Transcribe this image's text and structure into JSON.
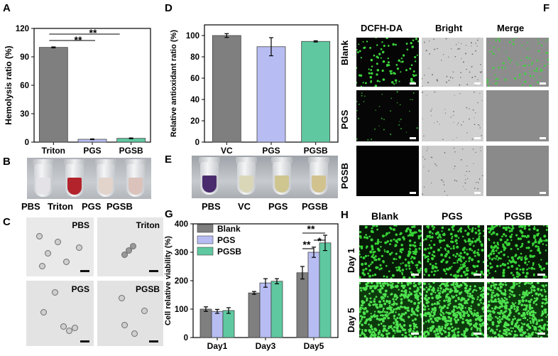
{
  "panel_labels": {
    "A": "A",
    "B": "B",
    "C": "C",
    "D": "D",
    "E": "E",
    "F": "F",
    "G": "G",
    "H": "H"
  },
  "panel_A": {
    "sig": [
      "**",
      "**"
    ]
  },
  "panel_B": {
    "labels": [
      "PBS",
      "Triton",
      "PGS",
      "PGSB"
    ]
  },
  "panel_C": {
    "labels": [
      "PBS",
      "Triton",
      "PGS",
      "PGSB"
    ]
  },
  "panel_D": {},
  "panel_E": {
    "labels": [
      "PBS",
      "VC",
      "PGS",
      "PGSB"
    ]
  },
  "panel_F": {
    "columns": [
      "DCFH-DA",
      "Bright",
      "Merge"
    ],
    "rows": [
      "Blank",
      "PGS",
      "PGSB"
    ]
  },
  "panel_G": {
    "sig": [
      "**",
      "**",
      "*"
    ]
  },
  "panel_H": {
    "columns": [
      "Blank",
      "PGS",
      "PGSB"
    ],
    "rows": [
      "Day 1",
      "Day 5"
    ]
  },
  "chart_data": [
    {
      "id": "A",
      "type": "bar",
      "categories": [
        "Triton",
        "PGS",
        "PGSB"
      ],
      "values": [
        100,
        3,
        4
      ],
      "errors": [
        0.5,
        0.4,
        0.4
      ],
      "colors": [
        "#7f7f7f",
        "#b7bdf2",
        "#5fc8a0"
      ],
      "xlabel": "",
      "ylabel": "Hemolysis ratio (%)",
      "ylim": [
        0,
        120
      ],
      "yticks": [
        0,
        30,
        60,
        90,
        120
      ]
    },
    {
      "id": "D",
      "type": "bar",
      "categories": [
        "VC",
        "PGS",
        "PGSB"
      ],
      "values": [
        100,
        89.5,
        94.5
      ],
      "errors": [
        1.8,
        8.5,
        0.6
      ],
      "colors": [
        "#7f7f7f",
        "#b7bdf2",
        "#5fc8a0"
      ],
      "xlabel": "",
      "ylabel": "Relative antioxidant ratio (%)",
      "ylim": [
        0,
        110
      ],
      "yticks": [
        0,
        20,
        40,
        60,
        80,
        100
      ]
    },
    {
      "id": "G",
      "type": "bar",
      "categories": [
        "Day1",
        "Day3",
        "Day5"
      ],
      "series": [
        {
          "name": "Blank",
          "values": [
            100,
            157,
            228
          ],
          "errors": [
            8,
            5,
            22
          ],
          "color": "#7f7f7f"
        },
        {
          "name": "PGS",
          "values": [
            92,
            192,
            300
          ],
          "errors": [
            7,
            15,
            18
          ],
          "color": "#b7bdf2"
        },
        {
          "name": "PGSB",
          "values": [
            95,
            198,
            333
          ],
          "errors": [
            10,
            9,
            27
          ],
          "color": "#5fc8a0"
        }
      ],
      "xlabel": "",
      "ylabel": "Cell relative viability (%)",
      "ylim": [
        0,
        400
      ],
      "yticks": [
        0,
        100,
        200,
        300,
        400
      ],
      "legend": "top-left"
    }
  ]
}
